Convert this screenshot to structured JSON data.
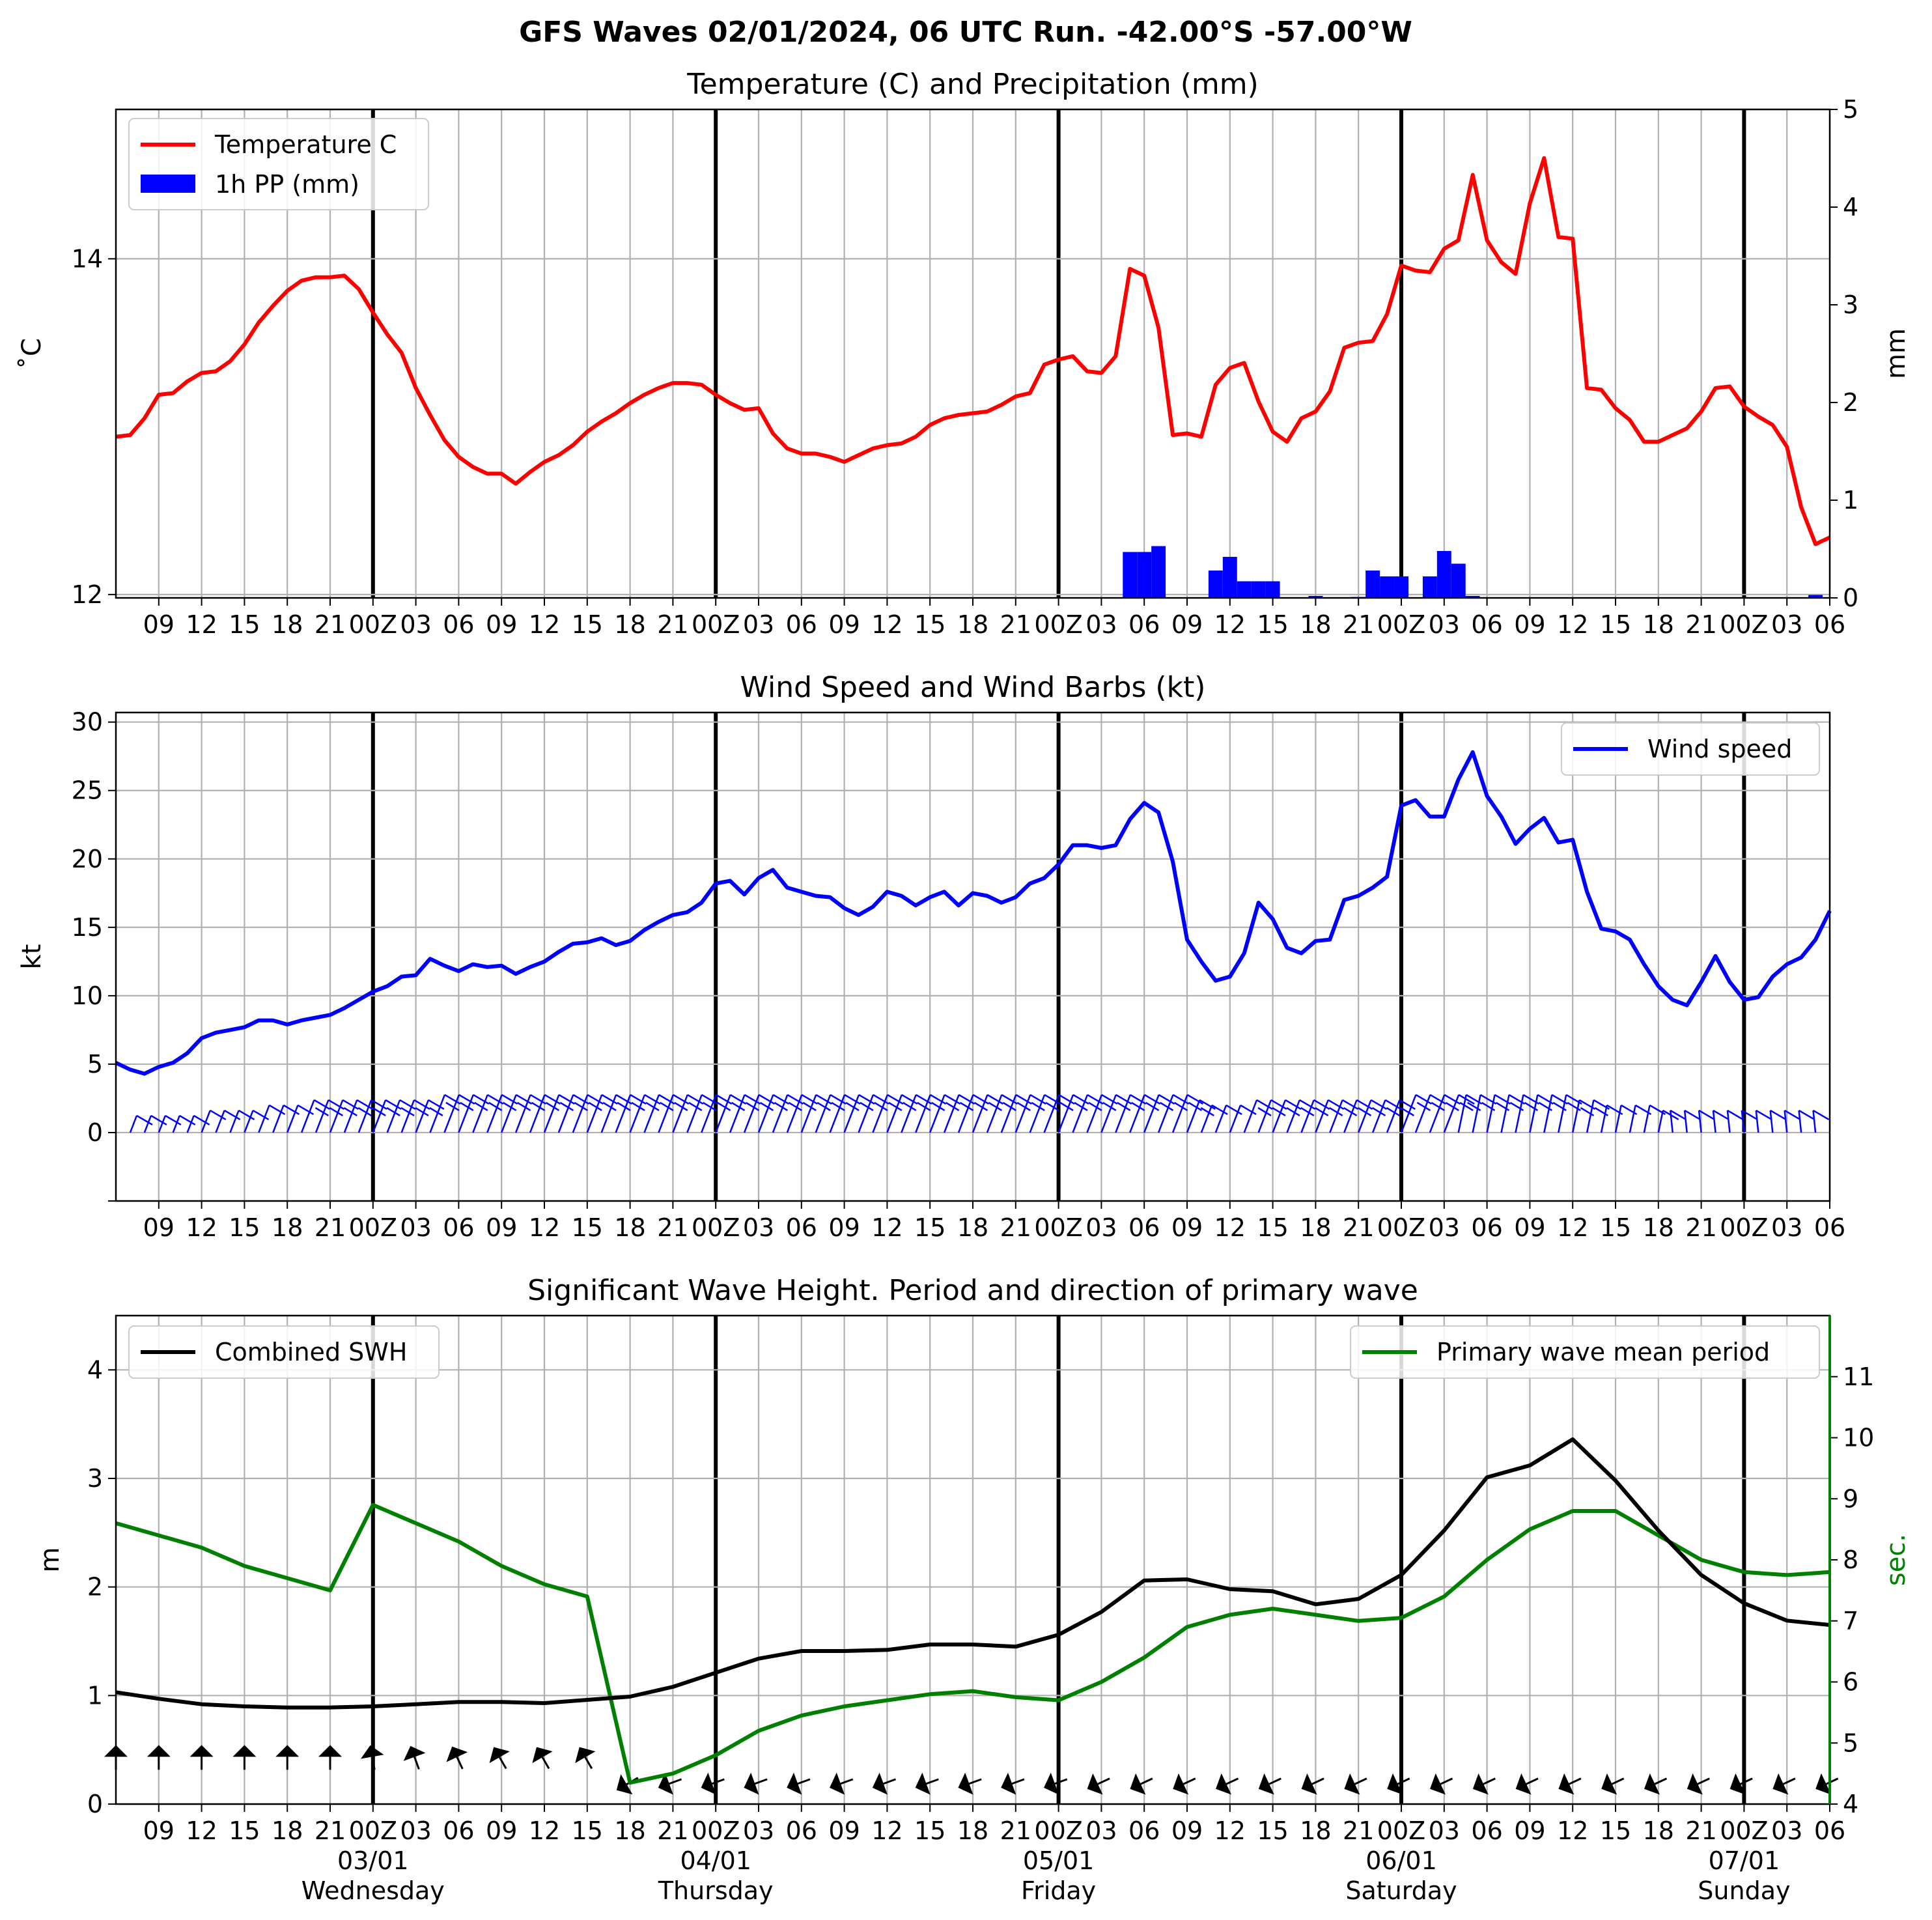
{
  "suptitle": "GFS Waves 02/01/2024, 06 UTC Run. -42.00°S -57.00°W",
  "colors": {
    "temperature": "#ff0000",
    "precip": "#0000ff",
    "wind": "#0000ff",
    "swh": "#000000",
    "period": "#008000",
    "grid": "#b0b0b0"
  },
  "time_axis": {
    "start_hour": 6,
    "end_hour": 126,
    "tick_labels": [
      "09",
      "12",
      "15",
      "18",
      "21",
      "00Z",
      "03",
      "06",
      "09",
      "12",
      "15",
      "18",
      "21",
      "00Z",
      "03",
      "06",
      "09",
      "12",
      "15",
      "18",
      "21",
      "00Z",
      "03",
      "06",
      "09",
      "12",
      "15",
      "18",
      "21",
      "00Z",
      "03",
      "06",
      "09",
      "12",
      "15",
      "18",
      "21",
      "00Z",
      "03",
      "06"
    ],
    "day_lines_hours": [
      24,
      48,
      72,
      96,
      120
    ],
    "day_labels": [
      {
        "date": "03/01",
        "weekday": "Wednesday"
      },
      {
        "date": "04/01",
        "weekday": "Thursday"
      },
      {
        "date": "05/01",
        "weekday": "Friday"
      },
      {
        "date": "06/01",
        "weekday": "Saturday"
      },
      {
        "date": "07/01",
        "weekday": "Sunday"
      }
    ]
  },
  "chart_data": [
    {
      "type": "line",
      "title": "Temperature (C) and Precipitation (mm)",
      "ylabel": "$^\\circ$C",
      "ylabel_display": "˚C",
      "y2label": "mm",
      "ylim": [
        11.98,
        14.89
      ],
      "yticks": [
        12,
        14
      ],
      "y2lim": [
        0,
        5
      ],
      "y2ticks": [
        0,
        1,
        2,
        3,
        4,
        5
      ],
      "legend": {
        "position": "upper-left",
        "entries": [
          "Temperature C",
          "1h PP (mm)"
        ]
      },
      "series": [
        {
          "name": "Temperature C",
          "x_start": 6,
          "x_step": 1,
          "values": [
            12.94,
            12.95,
            13.05,
            13.19,
            13.2,
            13.27,
            13.32,
            13.33,
            13.39,
            13.49,
            13.62,
            13.72,
            13.81,
            13.87,
            13.89,
            13.89,
            13.9,
            13.82,
            13.68,
            13.55,
            13.44,
            13.23,
            13.07,
            12.92,
            12.82,
            12.76,
            12.72,
            12.72,
            12.66,
            12.73,
            12.79,
            12.83,
            12.89,
            12.97,
            13.03,
            13.08,
            13.14,
            13.19,
            13.23,
            13.26,
            13.26,
            13.25,
            13.19,
            13.14,
            13.1,
            13.11,
            12.96,
            12.87,
            12.84,
            12.84,
            12.82,
            12.79,
            12.83,
            12.87,
            12.89,
            12.9,
            12.94,
            13.01,
            13.05,
            13.07,
            13.08,
            13.09,
            13.13,
            13.18,
            13.2,
            13.37,
            13.4,
            13.42,
            13.33,
            13.32,
            13.42,
            13.94,
            13.9,
            13.59,
            12.95,
            12.96,
            12.94,
            13.25,
            13.35,
            13.38,
            13.15,
            12.97,
            12.91,
            13.05,
            13.09,
            13.21,
            13.47,
            13.5,
            13.51,
            13.67,
            13.96,
            13.93,
            13.92,
            14.06,
            14.11,
            14.5,
            14.11,
            13.98,
            13.91,
            14.33,
            14.6,
            14.13,
            14.12,
            13.23,
            13.22,
            13.11,
            13.04,
            12.91,
            12.91,
            12.95,
            12.99,
            13.09,
            13.23,
            13.24,
            13.12,
            13.06,
            13.01,
            12.88,
            12.52,
            12.3,
            12.34
          ]
        },
        {
          "name": "1h PP (mm)",
          "type": "bar",
          "bars": [
            {
              "x": 77,
              "value": 0.47
            },
            {
              "x": 78,
              "value": 0.47
            },
            {
              "x": 79,
              "value": 0.53
            },
            {
              "x": 83,
              "value": 0.28
            },
            {
              "x": 84,
              "value": 0.42
            },
            {
              "x": 85,
              "value": 0.17
            },
            {
              "x": 86,
              "value": 0.17
            },
            {
              "x": 87,
              "value": 0.17
            },
            {
              "x": 90,
              "value": 0.02
            },
            {
              "x": 93,
              "value": 0.01
            },
            {
              "x": 94,
              "value": 0.28
            },
            {
              "x": 95,
              "value": 0.22
            },
            {
              "x": 96,
              "value": 0.22
            },
            {
              "x": 98,
              "value": 0.22
            },
            {
              "x": 99,
              "value": 0.48
            },
            {
              "x": 100,
              "value": 0.35
            },
            {
              "x": 101,
              "value": 0.02
            },
            {
              "x": 125,
              "value": 0.03
            }
          ]
        }
      ]
    },
    {
      "type": "line",
      "title": "Wind Speed and Wind Barbs (kt)",
      "ylabel": "kt",
      "ylim": [
        -5,
        30.7
      ],
      "yticks": [
        0,
        5,
        10,
        15,
        20,
        25,
        30
      ],
      "legend": {
        "position": "upper-right",
        "entries": [
          "Wind speed"
        ]
      },
      "series": [
        {
          "name": "Wind speed",
          "x_start": 6,
          "x_step": 1,
          "values": [
            5.1,
            4.6,
            4.3,
            4.8,
            5.1,
            5.8,
            6.9,
            7.3,
            7.5,
            7.7,
            8.2,
            8.2,
            7.9,
            8.2,
            8.4,
            8.6,
            9.1,
            9.7,
            10.3,
            10.7,
            11.4,
            11.5,
            12.7,
            12.2,
            11.8,
            12.3,
            12.1,
            12.2,
            11.6,
            12.1,
            12.5,
            13.2,
            13.8,
            13.9,
            14.2,
            13.7,
            14.0,
            14.8,
            15.4,
            15.9,
            16.1,
            16.8,
            18.2,
            18.4,
            17.4,
            18.6,
            19.2,
            17.9,
            17.6,
            17.3,
            17.2,
            16.4,
            15.9,
            16.5,
            17.6,
            17.3,
            16.6,
            17.2,
            17.6,
            16.6,
            17.5,
            17.3,
            16.8,
            17.2,
            18.2,
            18.6,
            19.6,
            21.0,
            21.0,
            20.8,
            21.0,
            22.9,
            24.1,
            23.4,
            19.8,
            14.1,
            12.5,
            11.1,
            11.4,
            13.1,
            16.8,
            15.6,
            13.5,
            13.1,
            14.0,
            14.1,
            17.0,
            17.3,
            17.9,
            18.7,
            23.9,
            24.3,
            23.1,
            23.1,
            25.8,
            27.8,
            24.6,
            23.1,
            21.1,
            22.2,
            23.0,
            21.2,
            21.4,
            17.6,
            14.9,
            14.7,
            14.1,
            12.3,
            10.7,
            9.7,
            9.3,
            11.0,
            12.9,
            11.0,
            9.7,
            9.9,
            11.4,
            12.3,
            12.8,
            14.1,
            16.2
          ]
        }
      ],
      "barbs": {
        "x_start": 7,
        "x_step": 1,
        "speeds": [
          2,
          2,
          2,
          2,
          2,
          3,
          3,
          3,
          3,
          4,
          4,
          4,
          5,
          5,
          5,
          5,
          5,
          5,
          5,
          5,
          5,
          6,
          6,
          6,
          6,
          6,
          6,
          6,
          6,
          6,
          6,
          6,
          6,
          6,
          6,
          6,
          6,
          6,
          6,
          6,
          6,
          6,
          6,
          6,
          6,
          6,
          6,
          6,
          6,
          6,
          6,
          6,
          6,
          6,
          6,
          6,
          6,
          6,
          6,
          6,
          6,
          6,
          6,
          6,
          6,
          6,
          6,
          6,
          6,
          6,
          6,
          6,
          6,
          6,
          5,
          4,
          4,
          4,
          5,
          5,
          5,
          5,
          5,
          5,
          5,
          5,
          5,
          5,
          5,
          6,
          6,
          6,
          6,
          6,
          6,
          6,
          6,
          6,
          6,
          6,
          6,
          5,
          5,
          4,
          4,
          4,
          4,
          3,
          3,
          3,
          3,
          3,
          3,
          3,
          3,
          3,
          3,
          3,
          3
        ],
        "direction": "from-north-north-east"
      }
    },
    {
      "type": "line",
      "title": "Significant Wave Height. Period and direction of primary wave",
      "ylabel": "m",
      "y2label": "sec.",
      "ylim": [
        0,
        4.5
      ],
      "yticks": [
        0,
        1,
        2,
        3,
        4
      ],
      "y2lim": [
        4,
        12
      ],
      "y2ticks": [
        4,
        5,
        6,
        7,
        8,
        9,
        10,
        11
      ],
      "legend_left": {
        "position": "upper-left",
        "entries": [
          "Combined SWH"
        ]
      },
      "legend_right": {
        "position": "upper-right",
        "entries": [
          "Primary wave mean period"
        ]
      },
      "x": [
        6,
        9,
        12,
        15,
        18,
        21,
        24,
        27,
        30,
        33,
        36,
        39,
        42,
        45,
        48,
        51,
        54,
        57,
        60,
        63,
        66,
        69,
        72,
        75,
        78,
        81,
        84,
        87,
        90,
        93,
        96,
        99,
        102,
        105,
        108,
        111,
        114,
        117,
        120,
        123,
        126
      ],
      "series": [
        {
          "name": "Combined SWH",
          "values": [
            1.03,
            0.97,
            0.92,
            0.9,
            0.89,
            0.89,
            0.9,
            0.92,
            0.94,
            0.94,
            0.93,
            0.96,
            0.99,
            1.08,
            1.21,
            1.34,
            1.41,
            1.41,
            1.42,
            1.47,
            1.47,
            1.45,
            1.56,
            1.77,
            2.06,
            2.07,
            1.98,
            1.96,
            1.84,
            1.89,
            2.11,
            2.52,
            3.01,
            3.12,
            3.36,
            2.98,
            2.52,
            2.11,
            1.85,
            1.69,
            1.65
          ]
        },
        {
          "name": "Primary wave mean period",
          "values": [
            8.6,
            8.4,
            8.2,
            7.9,
            7.7,
            7.5,
            8.9,
            8.6,
            8.3,
            7.9,
            7.6,
            7.4,
            4.35,
            4.5,
            4.8,
            5.2,
            5.45,
            5.6,
            5.7,
            5.8,
            5.85,
            5.75,
            5.7,
            6.0,
            6.4,
            6.9,
            7.1,
            7.2,
            7.1,
            7.0,
            7.05,
            7.4,
            8.0,
            8.5,
            8.8,
            8.8,
            8.4,
            8.0,
            7.8,
            7.75,
            7.8
          ]
        }
      ],
      "wave_direction_arrows": {
        "x": [
          6,
          9,
          12,
          15,
          18,
          21,
          24,
          27,
          30,
          33,
          36,
          39,
          42,
          45,
          48,
          51,
          54,
          57,
          60,
          63,
          66,
          69,
          72,
          75,
          78,
          81,
          84,
          87,
          90,
          93,
          96,
          99,
          102,
          105,
          108,
          111,
          114,
          117,
          120,
          123,
          126
        ],
        "heading_deg": [
          0,
          0,
          0,
          0,
          0,
          0,
          -10,
          -20,
          -25,
          -30,
          -30,
          -30,
          240,
          250,
          250,
          250,
          250,
          250,
          250,
          250,
          250,
          250,
          250,
          245,
          245,
          245,
          245,
          245,
          245,
          245,
          245,
          245,
          245,
          245,
          245,
          245,
          245,
          245,
          245,
          245,
          245
        ]
      }
    }
  ]
}
